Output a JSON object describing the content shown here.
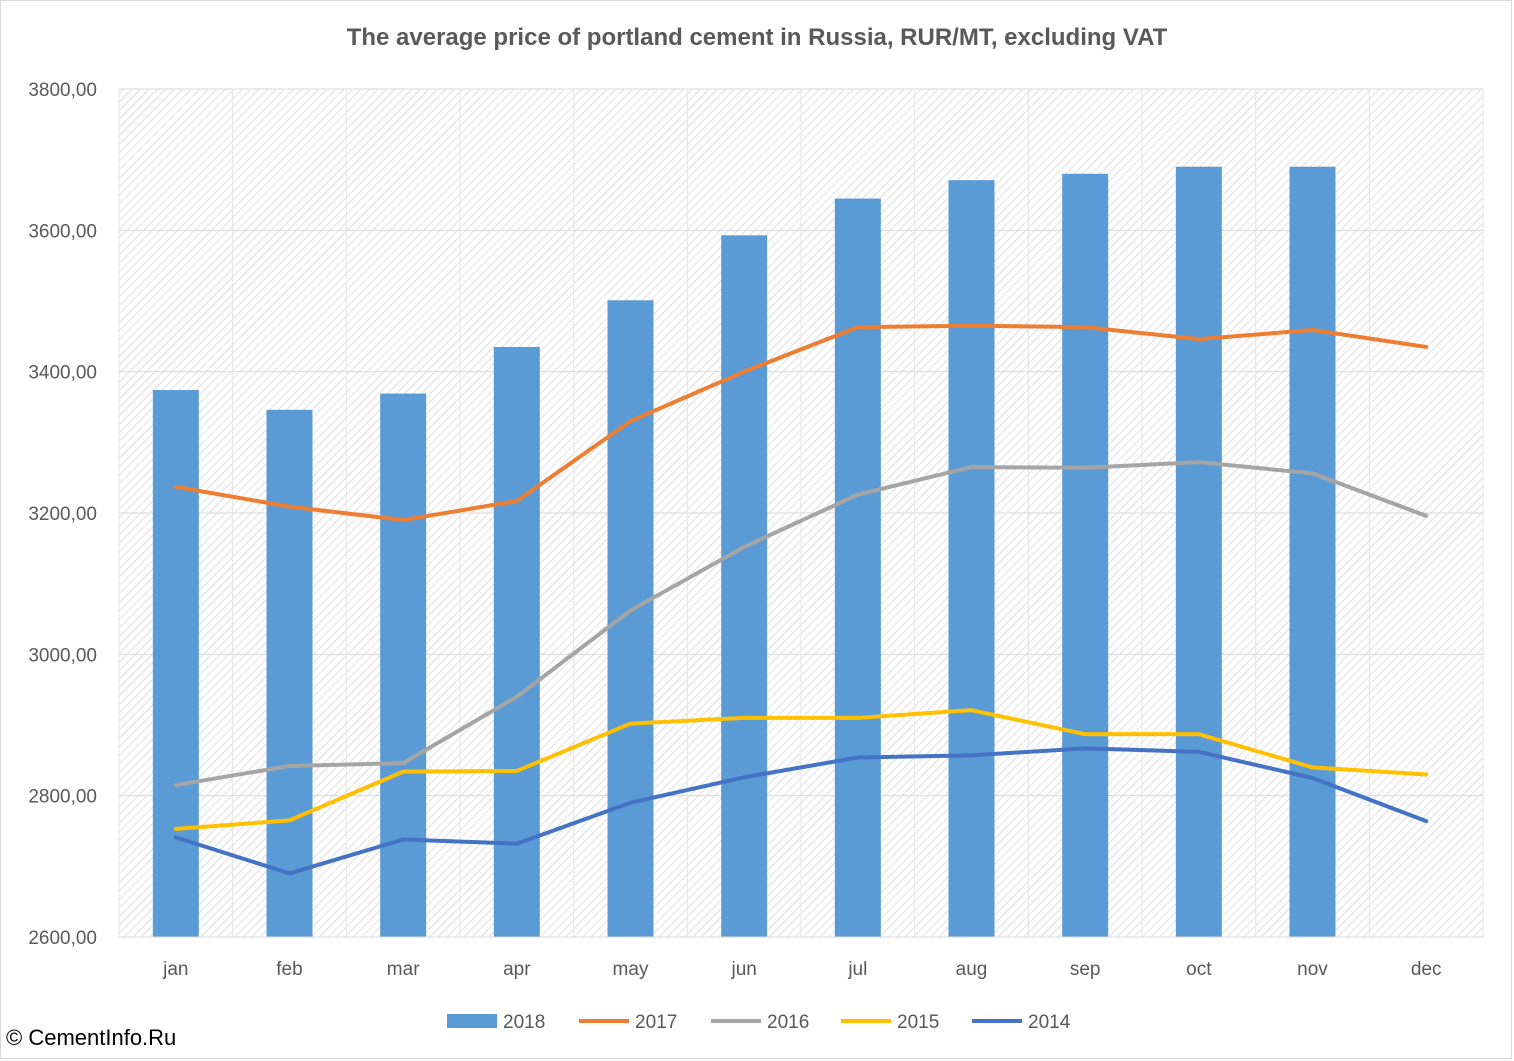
{
  "chart_data": {
    "type": "bar",
    "title": "The average price of portland cement in Russia, RUR/MT,  excluding VAT",
    "xlabel": "",
    "ylabel": "",
    "ylim": [
      2600,
      3800
    ],
    "yticks": [
      "2600,00",
      "2800,00",
      "3000,00",
      "3200,00",
      "3400,00",
      "3600,00",
      "3800,00"
    ],
    "ytick_values": [
      2600,
      2800,
      3000,
      3200,
      3400,
      3600,
      3800
    ],
    "categories": [
      "jan",
      "feb",
      "mar",
      "apr",
      "may",
      "jun",
      "jul",
      "aug",
      "sep",
      "oct",
      "nov",
      "dec"
    ],
    "grid": true,
    "legend_position": "bottom",
    "series": [
      {
        "name": "2018",
        "kind": "bar",
        "color": "#5b9bd5",
        "values": [
          3374,
          3346,
          3369,
          3435,
          3501,
          3593,
          3645,
          3671,
          3680,
          3690,
          3690,
          null
        ]
      },
      {
        "name": "2017",
        "kind": "line",
        "color": "#ed7d31",
        "values": [
          3237,
          3209,
          3190,
          3217,
          3330,
          3400,
          3463,
          3465,
          3463,
          3446,
          3459,
          3435
        ]
      },
      {
        "name": "2016",
        "kind": "line",
        "color": "#a5a5a5",
        "values": [
          2815,
          2842,
          2846,
          2940,
          3062,
          3152,
          3226,
          3265,
          3264,
          3272,
          3256,
          3196
        ]
      },
      {
        "name": "2015",
        "kind": "line",
        "color": "#ffc000",
        "values": [
          2753,
          2765,
          2834,
          2835,
          2902,
          2910,
          2910,
          2921,
          2887,
          2887,
          2840,
          2830
        ]
      },
      {
        "name": "2014",
        "kind": "line",
        "color": "#4472c4",
        "values": [
          2741,
          2690,
          2738,
          2732,
          2790,
          2826,
          2854,
          2857,
          2867,
          2862,
          2825,
          2764
        ]
      }
    ]
  },
  "footer": {
    "copyright": "© CementInfo.Ru"
  }
}
